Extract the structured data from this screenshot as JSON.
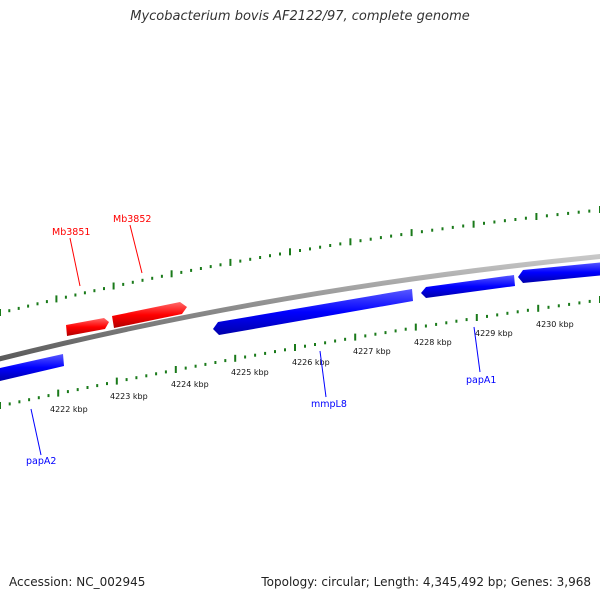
{
  "header": {
    "title": "Mycobacterium bovis AF2122/97, complete genome"
  },
  "footer": {
    "accession": "Accession: NC_002945",
    "summary": "Topology: circular; Length: 4,345,492 bp; Genes: 3,968"
  },
  "colors": {
    "forward_gene": "#ff0000",
    "reverse_gene": "#0000ff",
    "backbone": "#8c8c8c",
    "ticks": "#1a7a1a"
  },
  "map": {
    "kbp_ticks": [
      "4222 kbp",
      "4223 kbp",
      "4224 kbp",
      "4225 kbp",
      "4226 kbp",
      "4227 kbp",
      "4228 kbp",
      "4229 kbp",
      "4230 kbp"
    ],
    "genes": [
      {
        "name": "Mb3851",
        "strand": "forward"
      },
      {
        "name": "Mb3852",
        "strand": "forward"
      },
      {
        "name": "papA2",
        "strand": "reverse"
      },
      {
        "name": "mmpL8",
        "strand": "reverse"
      },
      {
        "name": "papA1",
        "strand": "reverse"
      }
    ]
  }
}
